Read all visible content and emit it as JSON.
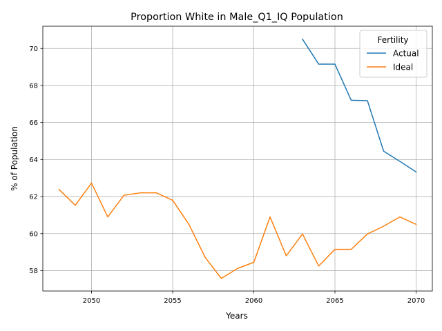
{
  "chart_data": {
    "type": "line",
    "title": "Proportion White in Male_Q1_IQ Population",
    "xlabel": "Years",
    "ylabel": "% of Population",
    "xlim": [
      2047,
      2071
    ],
    "ylim": [
      56.9,
      71.2
    ],
    "xticks": [
      2050,
      2055,
      2060,
      2065,
      2070
    ],
    "yticks": [
      58,
      60,
      62,
      64,
      66,
      68,
      70
    ],
    "grid": true,
    "legend": {
      "title": "Fertility",
      "position": "top-right"
    },
    "series": [
      {
        "name": "Actual",
        "color": "#1f77b4",
        "x": [
          2063,
          2064,
          2065,
          2066,
          2067,
          2068,
          2069,
          2070
        ],
        "values": [
          70.5,
          69.15,
          69.15,
          67.2,
          67.18,
          64.45,
          63.9,
          63.33
        ]
      },
      {
        "name": "Ideal",
        "color": "#ff7f0e",
        "x": [
          2048,
          2049,
          2050,
          2051,
          2052,
          2053,
          2054,
          2055,
          2056,
          2057,
          2058,
          2059,
          2060,
          2061,
          2062,
          2063,
          2064,
          2065,
          2066,
          2067,
          2068,
          2069,
          2070
        ],
        "values": [
          62.38,
          61.53,
          62.73,
          60.9,
          62.07,
          62.2,
          62.2,
          61.8,
          60.5,
          58.72,
          57.58,
          58.12,
          58.45,
          60.9,
          58.8,
          59.98,
          58.25,
          59.15,
          59.15,
          59.98,
          60.4,
          60.9,
          60.5
        ]
      }
    ]
  }
}
